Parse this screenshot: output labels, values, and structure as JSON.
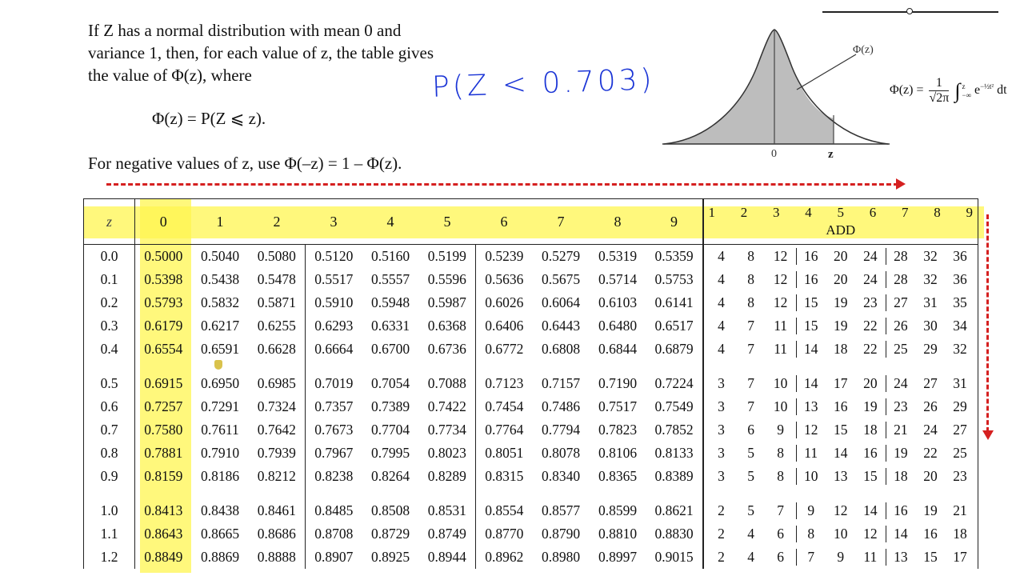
{
  "intro": {
    "line1": "If Z has a normal distribution with mean 0 and",
    "line2": "variance 1, then, for each value of z, the table gives",
    "line3": "the value of Φ(z), where",
    "formula": "Φ(z) = P(Z ⩽ z).",
    "negative_note": "For negative values of z, use Φ(–z) = 1 – Φ(z)."
  },
  "annotation": {
    "handwritten": "P(Z < 0.703)"
  },
  "figure": {
    "curve_label": "Φ(z)",
    "axis_zero": "0",
    "axis_z": "z",
    "formula_lhs": "Φ(z) =",
    "formula_num": "1",
    "formula_den": "√2π",
    "formula_integral": "∫",
    "formula_upper": "z",
    "formula_lower": "−∞",
    "formula_body": "e",
    "formula_exp": "−½t²",
    "formula_dt": "dt"
  },
  "table": {
    "z_header": "z",
    "col_headers": [
      "0",
      "1",
      "2",
      "3",
      "4",
      "5",
      "6",
      "7",
      "8",
      "9"
    ],
    "add_headers": [
      "1",
      "2",
      "3",
      "4",
      "5",
      "6",
      "7",
      "8",
      "9"
    ],
    "add_label": "ADD",
    "groups": [
      [
        {
          "z": "0.0",
          "v": [
            "0.5000",
            "0.5040",
            "0.5080",
            "0.5120",
            "0.5160",
            "0.5199",
            "0.5239",
            "0.5279",
            "0.5319",
            "0.5359"
          ],
          "add": [
            "4",
            "8",
            "12",
            "16",
            "20",
            "24",
            "28",
            "32",
            "36"
          ]
        },
        {
          "z": "0.1",
          "v": [
            "0.5398",
            "0.5438",
            "0.5478",
            "0.5517",
            "0.5557",
            "0.5596",
            "0.5636",
            "0.5675",
            "0.5714",
            "0.5753"
          ],
          "add": [
            "4",
            "8",
            "12",
            "16",
            "20",
            "24",
            "28",
            "32",
            "36"
          ]
        },
        {
          "z": "0.2",
          "v": [
            "0.5793",
            "0.5832",
            "0.5871",
            "0.5910",
            "0.5948",
            "0.5987",
            "0.6026",
            "0.6064",
            "0.6103",
            "0.6141"
          ],
          "add": [
            "4",
            "8",
            "12",
            "15",
            "19",
            "23",
            "27",
            "31",
            "35"
          ]
        },
        {
          "z": "0.3",
          "v": [
            "0.6179",
            "0.6217",
            "0.6255",
            "0.6293",
            "0.6331",
            "0.6368",
            "0.6406",
            "0.6443",
            "0.6480",
            "0.6517"
          ],
          "add": [
            "4",
            "7",
            "11",
            "15",
            "19",
            "22",
            "26",
            "30",
            "34"
          ]
        },
        {
          "z": "0.4",
          "v": [
            "0.6554",
            "0.6591",
            "0.6628",
            "0.6664",
            "0.6700",
            "0.6736",
            "0.6772",
            "0.6808",
            "0.6844",
            "0.6879"
          ],
          "add": [
            "4",
            "7",
            "11",
            "14",
            "18",
            "22",
            "25",
            "29",
            "32"
          ]
        }
      ],
      [
        {
          "z": "0.5",
          "v": [
            "0.6915",
            "0.6950",
            "0.6985",
            "0.7019",
            "0.7054",
            "0.7088",
            "0.7123",
            "0.7157",
            "0.7190",
            "0.7224"
          ],
          "add": [
            "3",
            "7",
            "10",
            "14",
            "17",
            "20",
            "24",
            "27",
            "31"
          ]
        },
        {
          "z": "0.6",
          "v": [
            "0.7257",
            "0.7291",
            "0.7324",
            "0.7357",
            "0.7389",
            "0.7422",
            "0.7454",
            "0.7486",
            "0.7517",
            "0.7549"
          ],
          "add": [
            "3",
            "7",
            "10",
            "13",
            "16",
            "19",
            "23",
            "26",
            "29"
          ]
        },
        {
          "z": "0.7",
          "v": [
            "0.7580",
            "0.7611",
            "0.7642",
            "0.7673",
            "0.7704",
            "0.7734",
            "0.7764",
            "0.7794",
            "0.7823",
            "0.7852"
          ],
          "add": [
            "3",
            "6",
            "9",
            "12",
            "15",
            "18",
            "21",
            "24",
            "27"
          ]
        },
        {
          "z": "0.8",
          "v": [
            "0.7881",
            "0.7910",
            "0.7939",
            "0.7967",
            "0.7995",
            "0.8023",
            "0.8051",
            "0.8078",
            "0.8106",
            "0.8133"
          ],
          "add": [
            "3",
            "5",
            "8",
            "11",
            "14",
            "16",
            "19",
            "22",
            "25"
          ]
        },
        {
          "z": "0.9",
          "v": [
            "0.8159",
            "0.8186",
            "0.8212",
            "0.8238",
            "0.8264",
            "0.8289",
            "0.8315",
            "0.8340",
            "0.8365",
            "0.8389"
          ],
          "add": [
            "3",
            "5",
            "8",
            "10",
            "13",
            "15",
            "18",
            "20",
            "23"
          ]
        }
      ],
      [
        {
          "z": "1.0",
          "v": [
            "0.8413",
            "0.8438",
            "0.8461",
            "0.8485",
            "0.8508",
            "0.8531",
            "0.8554",
            "0.8577",
            "0.8599",
            "0.8621"
          ],
          "add": [
            "2",
            "5",
            "7",
            "9",
            "12",
            "14",
            "16",
            "19",
            "21"
          ]
        },
        {
          "z": "1.1",
          "v": [
            "0.8643",
            "0.8665",
            "0.8686",
            "0.8708",
            "0.8729",
            "0.8749",
            "0.8770",
            "0.8790",
            "0.8810",
            "0.8830"
          ],
          "add": [
            "2",
            "4",
            "6",
            "8",
            "10",
            "12",
            "14",
            "16",
            "18"
          ]
        },
        {
          "z": "1.2",
          "v": [
            "0.8849",
            "0.8869",
            "0.8888",
            "0.8907",
            "0.8925",
            "0.8944",
            "0.8962",
            "0.8980",
            "0.8997",
            "0.9015"
          ],
          "add": [
            "2",
            "4",
            "6",
            "7",
            "9",
            "11",
            "13",
            "15",
            "17"
          ]
        }
      ]
    ]
  }
}
